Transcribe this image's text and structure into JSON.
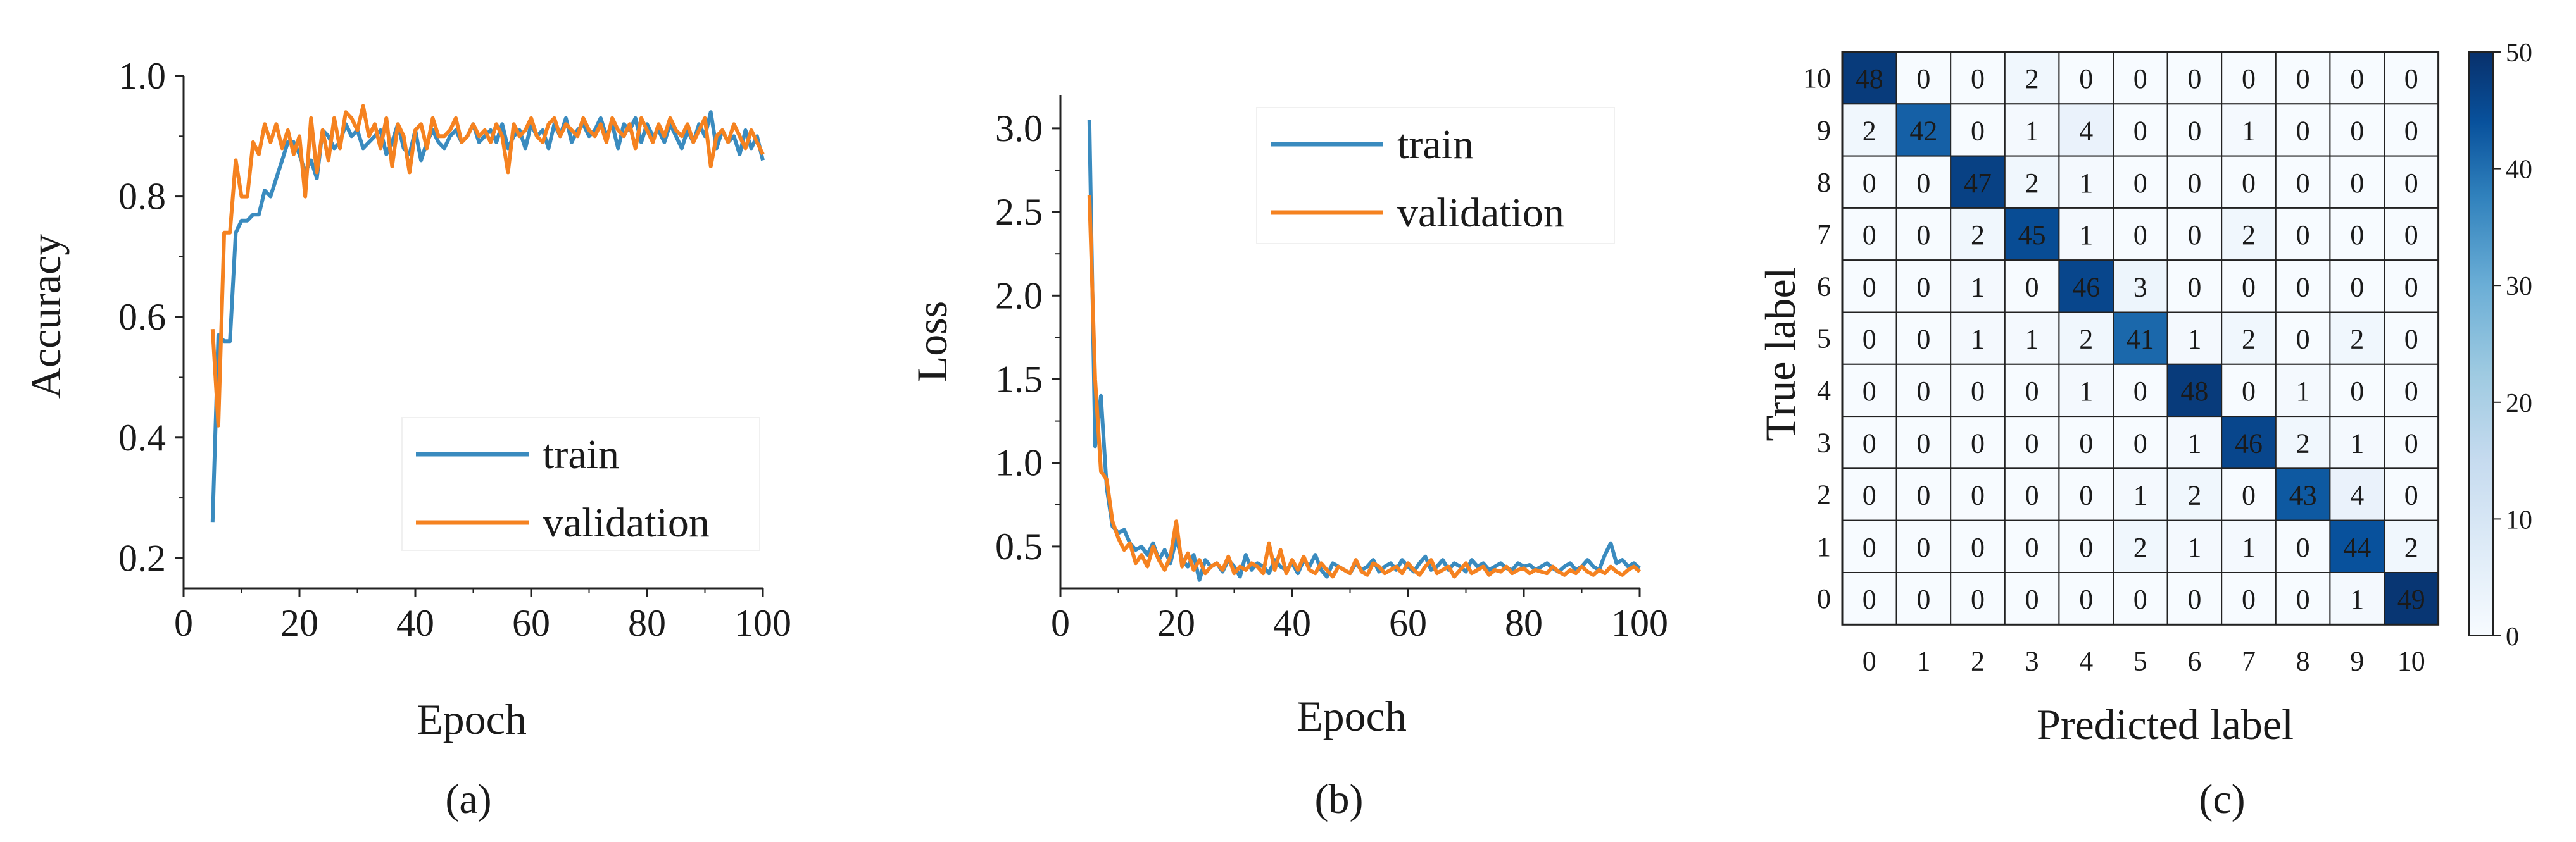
{
  "chart_data": [
    {
      "type": "line",
      "panel_label": "(a)",
      "xlabel": "Epoch",
      "ylabel": "Accuracy",
      "xlim": [
        0,
        100
      ],
      "ylim": [
        0.15,
        1.0
      ],
      "xticks": [
        0,
        20,
        40,
        60,
        80,
        100
      ],
      "yticks": [
        0.2,
        0.4,
        0.6,
        0.8,
        1.0
      ],
      "xtick_labels": [
        "0",
        "20",
        "40",
        "60",
        "80",
        "100"
      ],
      "ytick_labels": [
        "0.2",
        "0.4",
        "0.6",
        "0.8",
        "1.0"
      ],
      "legend_position": "bottom-right",
      "series": [
        {
          "name": "train",
          "color": "#3a8bbf",
          "x": [
            5,
            6,
            7,
            8,
            9,
            10,
            11,
            12,
            13,
            14,
            15,
            16,
            17,
            18,
            19,
            20,
            21,
            22,
            23,
            24,
            25,
            26,
            27,
            28,
            29,
            30,
            31,
            32,
            33,
            34,
            35,
            36,
            37,
            38,
            39,
            40,
            41,
            42,
            43,
            44,
            45,
            46,
            47,
            48,
            49,
            50,
            51,
            52,
            53,
            54,
            55,
            56,
            57,
            58,
            59,
            60,
            61,
            62,
            63,
            64,
            65,
            66,
            67,
            68,
            69,
            70,
            71,
            72,
            73,
            74,
            75,
            76,
            77,
            78,
            79,
            80,
            81,
            82,
            83,
            84,
            85,
            86,
            87,
            88,
            89,
            90,
            91,
            92,
            93,
            94,
            95,
            96,
            97,
            98,
            99,
            100
          ],
          "y": [
            0.26,
            0.57,
            0.56,
            0.56,
            0.74,
            0.76,
            0.76,
            0.77,
            0.77,
            0.81,
            0.8,
            0.83,
            0.86,
            0.89,
            0.89,
            0.87,
            0.84,
            0.86,
            0.83,
            0.91,
            0.9,
            0.88,
            0.89,
            0.92,
            0.9,
            0.91,
            0.88,
            0.89,
            0.9,
            0.91,
            0.87,
            0.89,
            0.92,
            0.88,
            0.87,
            0.91,
            0.86,
            0.89,
            0.91,
            0.89,
            0.88,
            0.9,
            0.91,
            0.89,
            0.9,
            0.92,
            0.89,
            0.9,
            0.91,
            0.89,
            0.92,
            0.88,
            0.9,
            0.91,
            0.88,
            0.92,
            0.9,
            0.91,
            0.88,
            0.92,
            0.9,
            0.93,
            0.89,
            0.91,
            0.92,
            0.9,
            0.91,
            0.93,
            0.9,
            0.92,
            0.88,
            0.92,
            0.91,
            0.93,
            0.89,
            0.92,
            0.9,
            0.91,
            0.89,
            0.92,
            0.9,
            0.88,
            0.91,
            0.89,
            0.92,
            0.9,
            0.94,
            0.88,
            0.91,
            0.89,
            0.9,
            0.87,
            0.91,
            0.88,
            0.9,
            0.86
          ]
        },
        {
          "name": "validation",
          "color": "#f58220",
          "x": [
            5,
            6,
            7,
            8,
            9,
            10,
            11,
            12,
            13,
            14,
            15,
            16,
            17,
            18,
            19,
            20,
            21,
            22,
            23,
            24,
            25,
            26,
            27,
            28,
            29,
            30,
            31,
            32,
            33,
            34,
            35,
            36,
            37,
            38,
            39,
            40,
            41,
            42,
            43,
            44,
            45,
            46,
            47,
            48,
            49,
            50,
            51,
            52,
            53,
            54,
            55,
            56,
            57,
            58,
            59,
            60,
            61,
            62,
            63,
            64,
            65,
            66,
            67,
            68,
            69,
            70,
            71,
            72,
            73,
            74,
            75,
            76,
            77,
            78,
            79,
            80,
            81,
            82,
            83,
            84,
            85,
            86,
            87,
            88,
            89,
            90,
            91,
            92,
            93,
            94,
            95,
            96,
            97,
            98,
            99,
            100
          ],
          "y": [
            0.58,
            0.42,
            0.74,
            0.74,
            0.86,
            0.8,
            0.8,
            0.89,
            0.87,
            0.92,
            0.89,
            0.92,
            0.88,
            0.91,
            0.87,
            0.9,
            0.8,
            0.93,
            0.84,
            0.91,
            0.86,
            0.93,
            0.88,
            0.94,
            0.93,
            0.91,
            0.95,
            0.9,
            0.92,
            0.88,
            0.93,
            0.85,
            0.92,
            0.9,
            0.84,
            0.91,
            0.92,
            0.88,
            0.93,
            0.9,
            0.9,
            0.91,
            0.93,
            0.89,
            0.9,
            0.92,
            0.9,
            0.91,
            0.89,
            0.92,
            0.9,
            0.84,
            0.92,
            0.9,
            0.91,
            0.93,
            0.9,
            0.89,
            0.92,
            0.93,
            0.9,
            0.92,
            0.91,
            0.9,
            0.93,
            0.91,
            0.9,
            0.92,
            0.89,
            0.93,
            0.91,
            0.9,
            0.92,
            0.88,
            0.93,
            0.91,
            0.89,
            0.92,
            0.9,
            0.93,
            0.91,
            0.9,
            0.92,
            0.89,
            0.91,
            0.93,
            0.85,
            0.9,
            0.91,
            0.89,
            0.92,
            0.9,
            0.88,
            0.91,
            0.89,
            0.87
          ]
        }
      ]
    },
    {
      "type": "line",
      "panel_label": "(b)",
      "xlabel": "Epoch",
      "ylabel": "Loss",
      "xlim": [
        0,
        100
      ],
      "ylim": [
        0.25,
        3.2
      ],
      "xticks": [
        0,
        20,
        40,
        60,
        80,
        100
      ],
      "yticks": [
        0.5,
        1.0,
        1.5,
        2.0,
        2.5,
        3.0
      ],
      "xtick_labels": [
        "0",
        "20",
        "40",
        "60",
        "80",
        "100"
      ],
      "ytick_labels": [
        "0.5",
        "1.0",
        "1.5",
        "2.0",
        "2.5",
        "3.0"
      ],
      "legend_position": "top-right",
      "series": [
        {
          "name": "train",
          "color": "#3a8bbf",
          "x": [
            5,
            6,
            7,
            8,
            9,
            10,
            11,
            12,
            13,
            14,
            15,
            16,
            17,
            18,
            19,
            20,
            21,
            22,
            23,
            24,
            25,
            26,
            27,
            28,
            29,
            30,
            31,
            32,
            33,
            34,
            35,
            36,
            37,
            38,
            39,
            40,
            41,
            42,
            43,
            44,
            45,
            46,
            47,
            48,
            49,
            50,
            51,
            52,
            53,
            54,
            55,
            56,
            57,
            58,
            59,
            60,
            61,
            62,
            63,
            64,
            65,
            66,
            67,
            68,
            69,
            70,
            71,
            72,
            73,
            74,
            75,
            76,
            77,
            78,
            79,
            80,
            81,
            82,
            83,
            84,
            85,
            86,
            87,
            88,
            89,
            90,
            91,
            92,
            93,
            94,
            95,
            96,
            97,
            98,
            99,
            100
          ],
          "y": [
            3.05,
            1.1,
            1.4,
            0.85,
            0.62,
            0.58,
            0.6,
            0.52,
            0.48,
            0.5,
            0.45,
            0.52,
            0.42,
            0.48,
            0.4,
            0.55,
            0.42,
            0.38,
            0.45,
            0.3,
            0.42,
            0.38,
            0.4,
            0.35,
            0.42,
            0.38,
            0.32,
            0.45,
            0.36,
            0.4,
            0.38,
            0.34,
            0.42,
            0.38,
            0.36,
            0.4,
            0.34,
            0.42,
            0.38,
            0.45,
            0.36,
            0.32,
            0.4,
            0.38,
            0.36,
            0.34,
            0.4,
            0.36,
            0.38,
            0.42,
            0.35,
            0.38,
            0.4,
            0.36,
            0.42,
            0.38,
            0.35,
            0.4,
            0.44,
            0.36,
            0.38,
            0.42,
            0.36,
            0.4,
            0.38,
            0.35,
            0.42,
            0.38,
            0.4,
            0.36,
            0.38,
            0.4,
            0.37,
            0.36,
            0.4,
            0.38,
            0.39,
            0.36,
            0.38,
            0.4,
            0.37,
            0.35,
            0.38,
            0.4,
            0.36,
            0.38,
            0.42,
            0.38,
            0.36,
            0.45,
            0.52,
            0.4,
            0.42,
            0.38,
            0.4,
            0.37
          ]
        },
        {
          "name": "validation",
          "color": "#f58220",
          "x": [
            5,
            6,
            7,
            8,
            9,
            10,
            11,
            12,
            13,
            14,
            15,
            16,
            17,
            18,
            19,
            20,
            21,
            22,
            23,
            24,
            25,
            26,
            27,
            28,
            29,
            30,
            31,
            32,
            33,
            34,
            35,
            36,
            37,
            38,
            39,
            40,
            41,
            42,
            43,
            44,
            45,
            46,
            47,
            48,
            49,
            50,
            51,
            52,
            53,
            54,
            55,
            56,
            57,
            58,
            59,
            60,
            61,
            62,
            63,
            64,
            65,
            66,
            67,
            68,
            69,
            70,
            71,
            72,
            73,
            74,
            75,
            76,
            77,
            78,
            79,
            80,
            81,
            82,
            83,
            84,
            85,
            86,
            87,
            88,
            89,
            90,
            91,
            92,
            93,
            94,
            95,
            96,
            97,
            98,
            99,
            100
          ],
          "y": [
            2.6,
            1.5,
            0.95,
            0.9,
            0.65,
            0.55,
            0.48,
            0.52,
            0.4,
            0.45,
            0.38,
            0.5,
            0.42,
            0.36,
            0.44,
            0.65,
            0.38,
            0.46,
            0.36,
            0.42,
            0.34,
            0.38,
            0.4,
            0.36,
            0.44,
            0.34,
            0.38,
            0.36,
            0.4,
            0.38,
            0.34,
            0.52,
            0.36,
            0.48,
            0.34,
            0.42,
            0.36,
            0.44,
            0.36,
            0.34,
            0.4,
            0.36,
            0.32,
            0.38,
            0.36,
            0.34,
            0.42,
            0.35,
            0.33,
            0.4,
            0.38,
            0.34,
            0.36,
            0.38,
            0.34,
            0.4,
            0.36,
            0.33,
            0.38,
            0.42,
            0.34,
            0.36,
            0.38,
            0.32,
            0.36,
            0.4,
            0.34,
            0.36,
            0.38,
            0.33,
            0.36,
            0.35,
            0.38,
            0.34,
            0.36,
            0.37,
            0.34,
            0.36,
            0.35,
            0.34,
            0.38,
            0.35,
            0.33,
            0.36,
            0.34,
            0.38,
            0.35,
            0.33,
            0.36,
            0.34,
            0.38,
            0.35,
            0.33,
            0.36,
            0.38,
            0.35
          ]
        }
      ]
    },
    {
      "type": "heatmap",
      "panel_label": "(c)",
      "xlabel": "Predicted label",
      "ylabel": "True label",
      "x_labels": [
        "0",
        "1",
        "2",
        "3",
        "4",
        "5",
        "6",
        "7",
        "8",
        "9",
        "10"
      ],
      "y_labels": [
        "10",
        "9",
        "8",
        "7",
        "6",
        "5",
        "4",
        "3",
        "2",
        "1",
        "0"
      ],
      "matrix": [
        [
          48,
          0,
          0,
          2,
          0,
          0,
          0,
          0,
          0,
          0,
          0
        ],
        [
          2,
          42,
          0,
          1,
          4,
          0,
          0,
          1,
          0,
          0,
          0
        ],
        [
          0,
          0,
          47,
          2,
          1,
          0,
          0,
          0,
          0,
          0,
          0
        ],
        [
          0,
          0,
          2,
          45,
          1,
          0,
          0,
          2,
          0,
          0,
          0
        ],
        [
          0,
          0,
          1,
          0,
          46,
          3,
          0,
          0,
          0,
          0,
          0
        ],
        [
          0,
          0,
          1,
          1,
          2,
          41,
          1,
          2,
          0,
          2,
          0
        ],
        [
          0,
          0,
          0,
          0,
          1,
          0,
          48,
          0,
          1,
          0,
          0
        ],
        [
          0,
          0,
          0,
          0,
          0,
          0,
          1,
          46,
          2,
          1,
          0
        ],
        [
          0,
          0,
          0,
          0,
          0,
          1,
          2,
          0,
          43,
          4,
          0
        ],
        [
          0,
          0,
          0,
          0,
          0,
          2,
          1,
          1,
          0,
          44,
          2
        ],
        [
          0,
          0,
          0,
          0,
          0,
          0,
          0,
          0,
          0,
          1,
          49
        ]
      ],
      "colorbar": {
        "min": 0,
        "max": 50,
        "ticks": [
          0,
          10,
          20,
          30,
          40,
          50
        ],
        "tick_labels": [
          "0",
          "10",
          "20",
          "30",
          "40",
          "50"
        ],
        "color_low": "#f7fbff",
        "color_high": "#08306b"
      }
    }
  ]
}
